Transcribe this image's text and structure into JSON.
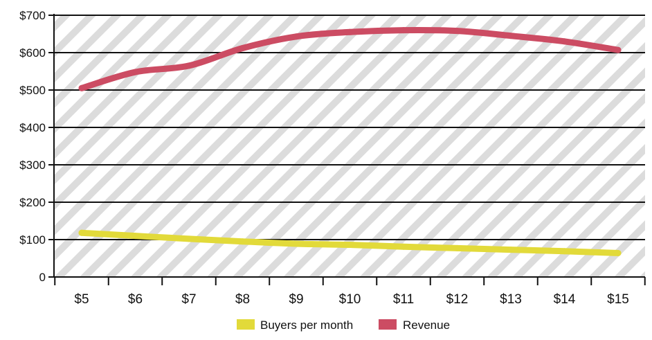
{
  "chart_data": {
    "type": "line",
    "title": "",
    "xlabel": "",
    "ylabel": "",
    "categories": [
      "$5",
      "$6",
      "$7",
      "$8",
      "$9",
      "$10",
      "$11",
      "$12",
      "$13",
      "$14",
      "$15"
    ],
    "y_tick_labels": [
      "0",
      "$100",
      "$200",
      "$300",
      "$400",
      "$500",
      "$600",
      "$700"
    ],
    "ylim": [
      0,
      700
    ],
    "grid": true,
    "legend_position": "bottom",
    "series": [
      {
        "name": "Buyers per month",
        "color": "#e2da3a",
        "values": [
          118,
          110,
          102,
          95,
          89,
          86,
          81,
          77,
          73,
          69,
          64
        ]
      },
      {
        "name": "Revenue",
        "color": "#cc4c63",
        "values": [
          505,
          548,
          565,
          612,
          643,
          655,
          660,
          658,
          645,
          630,
          607
        ]
      }
    ]
  }
}
